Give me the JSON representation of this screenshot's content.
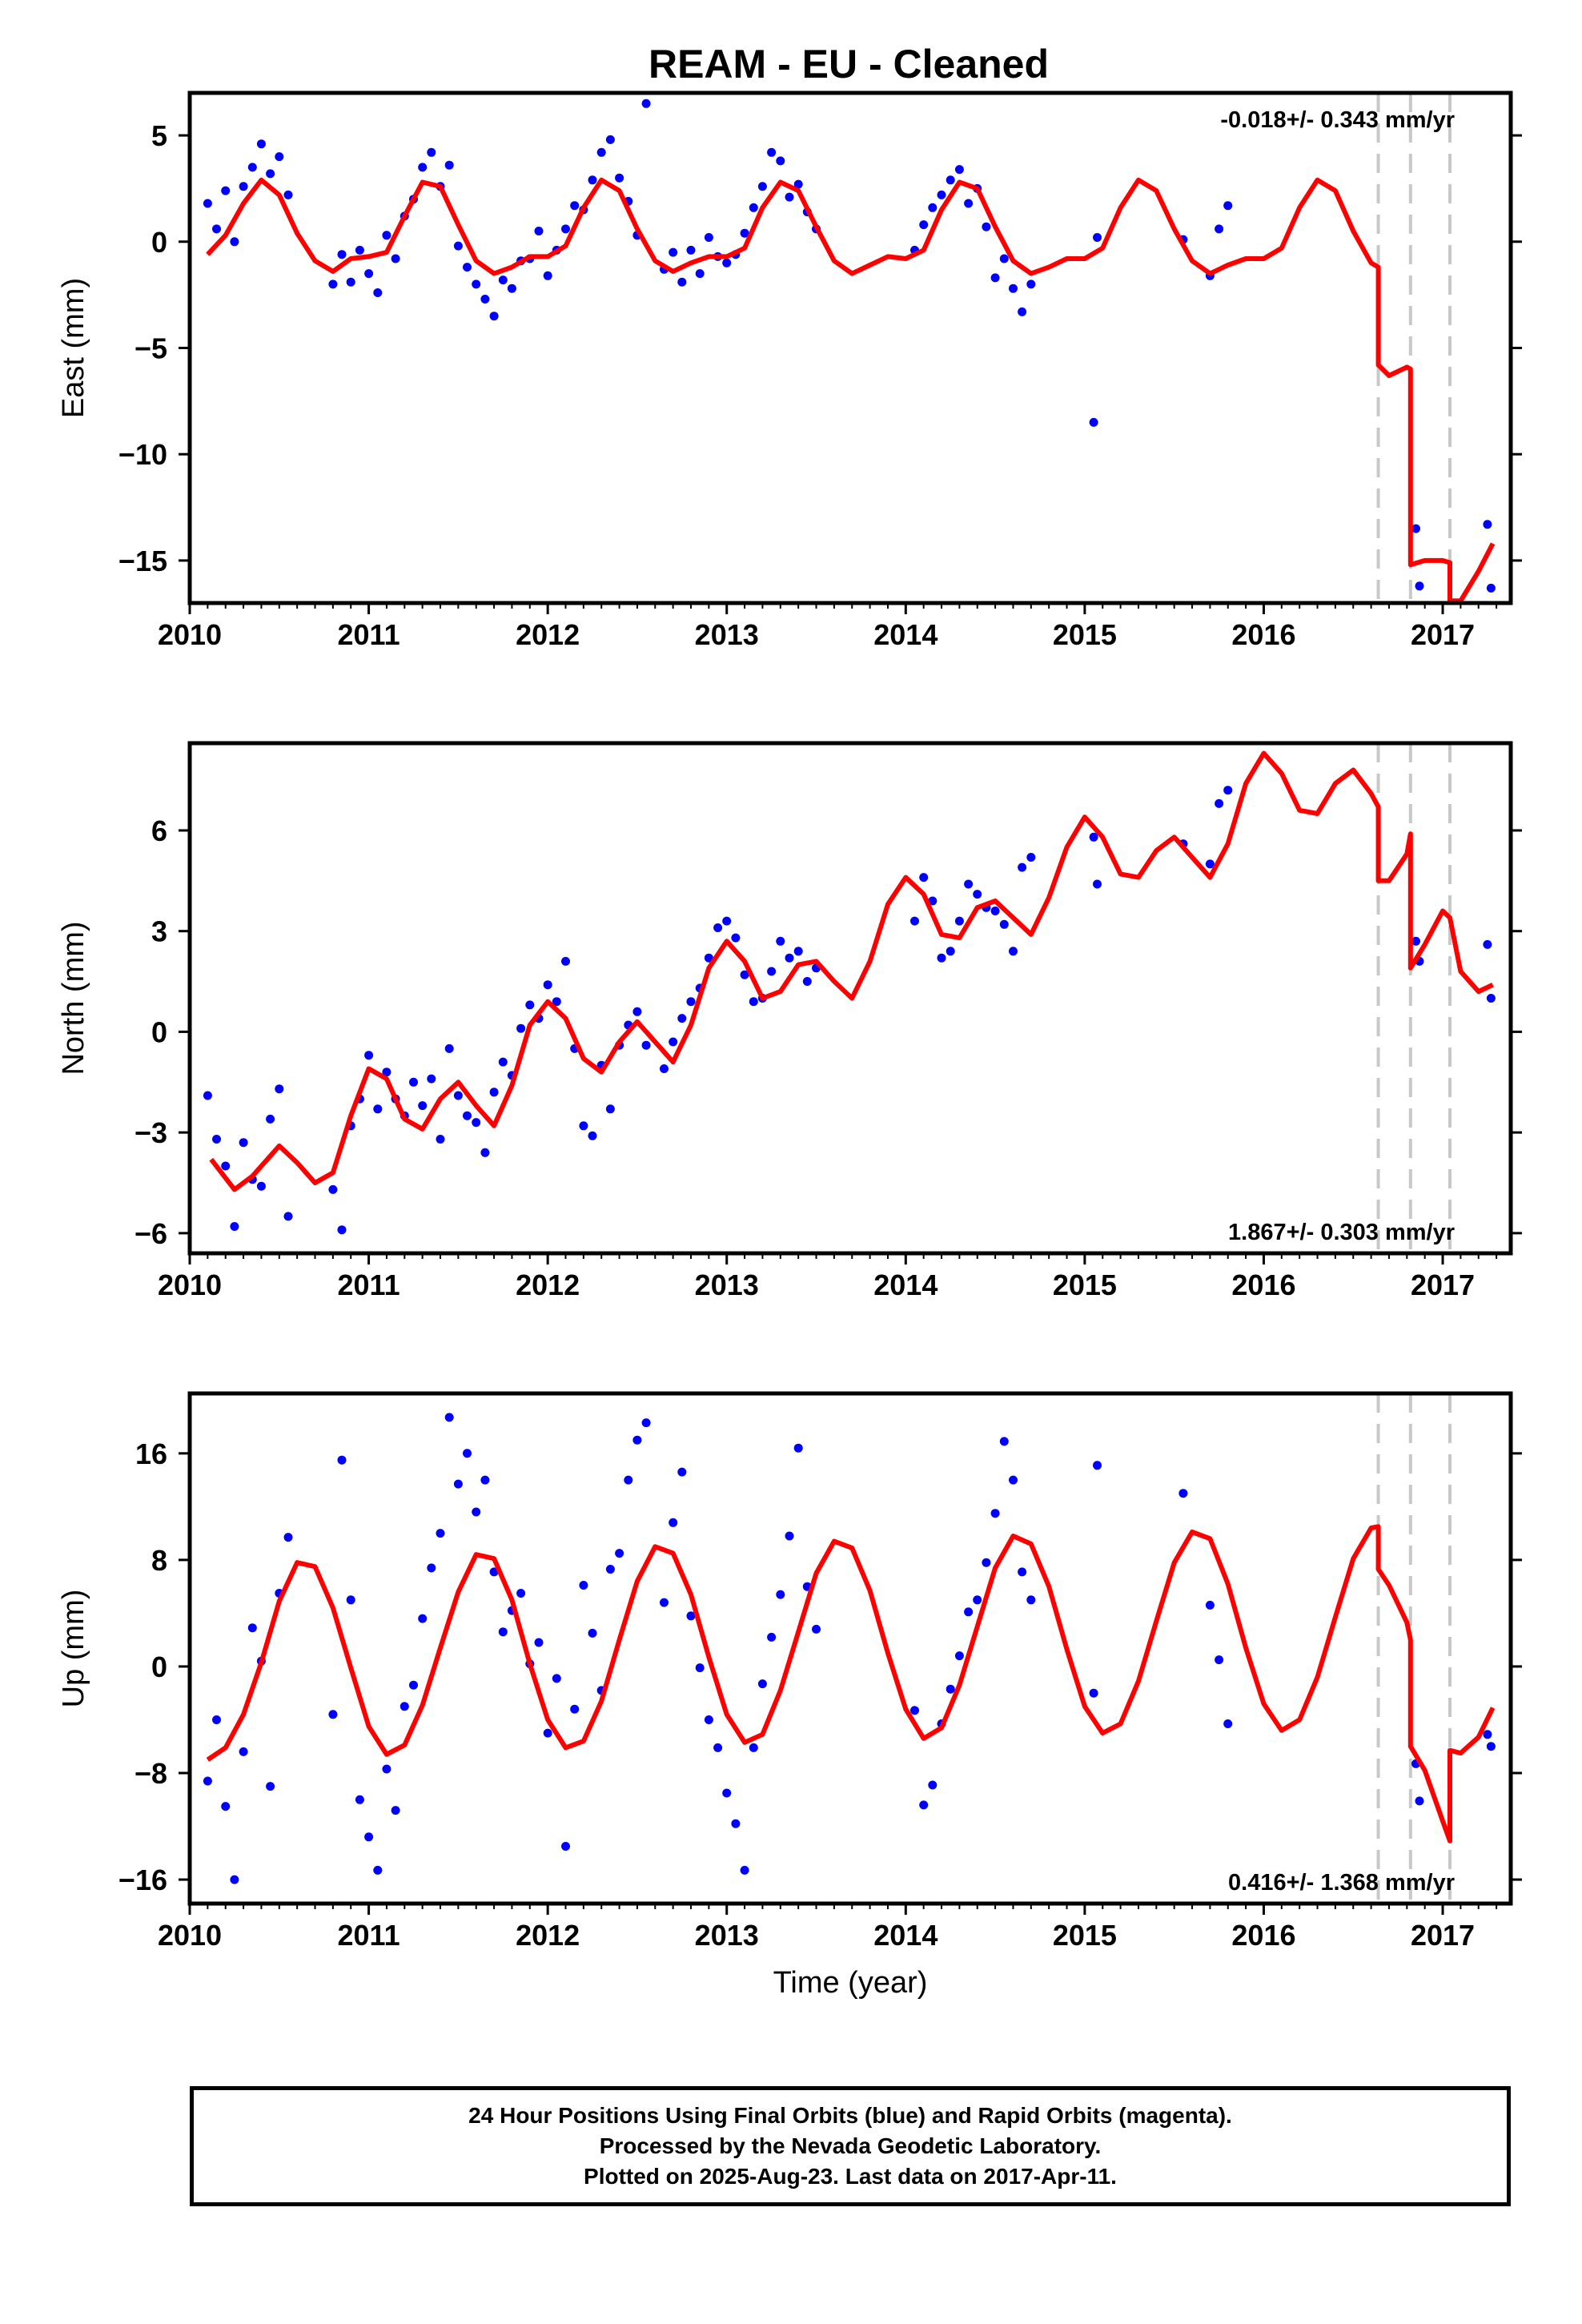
{
  "chart_data": [
    {
      "type": "scatter",
      "title": "REAM  - EU - Cleaned",
      "ylabel": "East (mm)",
      "xlim": [
        2010.0,
        2017.38
      ],
      "ylim": [
        -17.0,
        7.0
      ],
      "xticks": [
        2010,
        2011,
        2012,
        2013,
        2014,
        2015,
        2016,
        2017
      ],
      "yticks": [
        5,
        0,
        -5,
        -10,
        -15
      ],
      "ytick_labels": [
        "5",
        "0",
        "−5",
        "−10",
        "−15"
      ],
      "rate_text": "-0.018+/- 0.343 mm/yr",
      "rate_position": "top-right",
      "break_lines_x": [
        2016.64,
        2016.82,
        2017.04
      ],
      "model": {
        "color": "#ff0000",
        "x": [
          2010.1,
          2010.2,
          2010.3,
          2010.4,
          2010.5,
          2010.6,
          2010.7,
          2010.8,
          2010.9,
          2011.0,
          2011.1,
          2011.2,
          2011.3,
          2011.4,
          2011.5,
          2011.6,
          2011.7,
          2011.8,
          2011.9,
          2012.0,
          2012.1,
          2012.2,
          2012.3,
          2012.4,
          2012.5,
          2012.6,
          2012.7,
          2012.8,
          2012.9,
          2013.0,
          2013.1,
          2013.2,
          2013.3,
          2013.4,
          2013.5,
          2013.6,
          2013.7,
          2013.8,
          2013.9,
          2014.0,
          2014.1,
          2014.2,
          2014.3,
          2014.4,
          2014.5,
          2014.6,
          2014.7,
          2014.8,
          2014.9,
          2015.0,
          2015.1,
          2015.2,
          2015.3,
          2015.4,
          2015.5,
          2015.6,
          2015.7,
          2015.8,
          2015.9,
          2016.0,
          2016.1,
          2016.2,
          2016.3,
          2016.4,
          2016.5,
          2016.6,
          2016.64,
          2016.64,
          2016.7,
          2016.8,
          2016.82,
          2016.82,
          2016.9,
          2017.0,
          2017.04,
          2017.04,
          2017.1,
          2017.2,
          2017.28
        ],
        "y": [
          -0.6,
          0.3,
          1.8,
          2.9,
          2.2,
          0.4,
          -0.9,
          -1.4,
          -0.8,
          -0.7,
          -0.5,
          1.2,
          2.8,
          2.6,
          0.8,
          -0.9,
          -1.5,
          -1.2,
          -0.7,
          -0.7,
          -0.2,
          1.6,
          2.9,
          2.4,
          0.6,
          -0.9,
          -1.4,
          -1.0,
          -0.7,
          -0.7,
          -0.3,
          1.6,
          2.8,
          2.4,
          0.7,
          -0.9,
          -1.5,
          -1.1,
          -0.7,
          -0.8,
          -0.4,
          1.5,
          2.8,
          2.5,
          0.7,
          -0.9,
          -1.5,
          -1.2,
          -0.8,
          -0.8,
          -0.3,
          1.6,
          2.9,
          2.4,
          0.6,
          -0.9,
          -1.5,
          -1.1,
          -0.8,
          -0.8,
          -0.3,
          1.6,
          2.9,
          2.4,
          0.5,
          -1.0,
          -1.2,
          -5.8,
          -6.3,
          -5.9,
          -6.0,
          -15.2,
          -15.0,
          -15.0,
          -15.1,
          -16.9,
          -16.9,
          -15.5,
          -14.2
        ]
      },
      "points": {
        "color": "#0000ff",
        "x": [
          2010.1,
          2010.15,
          2010.2,
          2010.25,
          2010.3,
          2010.35,
          2010.4,
          2010.45,
          2010.5,
          2010.55,
          2010.8,
          2010.85,
          2010.9,
          2010.95,
          2011.0,
          2011.05,
          2011.1,
          2011.15,
          2011.2,
          2011.25,
          2011.3,
          2011.35,
          2011.4,
          2011.45,
          2011.5,
          2011.55,
          2011.6,
          2011.65,
          2011.7,
          2011.75,
          2011.8,
          2011.85,
          2011.9,
          2011.95,
          2012.0,
          2012.05,
          2012.1,
          2012.15,
          2012.2,
          2012.25,
          2012.3,
          2012.35,
          2012.4,
          2012.45,
          2012.5,
          2012.55,
          2012.65,
          2012.7,
          2012.75,
          2012.8,
          2012.85,
          2012.9,
          2012.95,
          2013.0,
          2013.05,
          2013.1,
          2013.15,
          2013.2,
          2013.25,
          2013.3,
          2013.35,
          2013.4,
          2013.45,
          2013.5,
          2014.05,
          2014.1,
          2014.15,
          2014.2,
          2014.25,
          2014.3,
          2014.35,
          2014.4,
          2014.45,
          2014.5,
          2014.55,
          2014.6,
          2014.65,
          2014.7,
          2015.05,
          2015.07,
          2015.55,
          2015.7,
          2015.75,
          2015.8,
          2016.85,
          2016.87,
          2017.25,
          2017.27
        ],
        "y": [
          1.8,
          0.6,
          2.4,
          0.0,
          2.6,
          3.5,
          4.6,
          3.2,
          4.0,
          2.2,
          -2.0,
          -0.6,
          -1.9,
          -0.4,
          -1.5,
          -2.4,
          0.3,
          -0.8,
          1.2,
          2.0,
          3.5,
          4.2,
          2.6,
          3.6,
          -0.2,
          -1.2,
          -2.0,
          -2.7,
          -3.5,
          -1.8,
          -2.2,
          -0.9,
          -0.8,
          0.5,
          -1.6,
          -0.4,
          0.6,
          1.7,
          1.5,
          2.9,
          4.2,
          4.8,
          3.0,
          1.9,
          0.3,
          6.5,
          -1.3,
          -0.5,
          -1.9,
          -0.4,
          -1.5,
          0.2,
          -0.7,
          -1.0,
          -0.6,
          0.4,
          1.6,
          2.6,
          4.2,
          3.8,
          2.1,
          2.7,
          1.4,
          0.6,
          -0.4,
          0.8,
          1.6,
          2.2,
          2.9,
          3.4,
          1.8,
          2.5,
          0.7,
          -1.7,
          -0.8,
          -2.2,
          -3.3,
          -2.0,
          -8.5,
          0.2,
          0.1,
          -1.6,
          0.6,
          1.7,
          -13.5,
          -16.2,
          -13.3,
          -16.3
        ]
      }
    },
    {
      "type": "scatter",
      "ylabel": "North (mm)",
      "xlim": [
        2010.0,
        2017.38
      ],
      "ylim": [
        -6.6,
        8.6
      ],
      "xticks": [
        2010,
        2011,
        2012,
        2013,
        2014,
        2015,
        2016,
        2017
      ],
      "yticks": [
        6,
        3,
        0,
        -3,
        -6
      ],
      "ytick_labels": [
        "6",
        "3",
        "0",
        "−3",
        "−6"
      ],
      "rate_text": "1.867+/- 0.303 mm/yr",
      "rate_position": "bottom-right",
      "break_lines_x": [
        2016.64,
        2016.82,
        2017.04
      ],
      "model": {
        "color": "#ff0000",
        "x": [
          2010.12,
          2010.25,
          2010.35,
          2010.5,
          2010.6,
          2010.7,
          2010.8,
          2010.9,
          2011.0,
          2011.1,
          2011.2,
          2011.3,
          2011.4,
          2011.5,
          2011.6,
          2011.7,
          2011.8,
          2011.9,
          2012.0,
          2012.1,
          2012.2,
          2012.3,
          2012.4,
          2012.5,
          2012.6,
          2012.7,
          2012.8,
          2012.9,
          2013.0,
          2013.1,
          2013.2,
          2013.3,
          2013.4,
          2013.5,
          2013.6,
          2013.7,
          2013.8,
          2013.9,
          2014.0,
          2014.1,
          2014.2,
          2014.3,
          2014.4,
          2014.5,
          2014.6,
          2014.7,
          2014.8,
          2014.9,
          2015.0,
          2015.1,
          2015.2,
          2015.3,
          2015.4,
          2015.5,
          2015.6,
          2015.7,
          2015.8,
          2015.9,
          2016.0,
          2016.1,
          2016.2,
          2016.3,
          2016.4,
          2016.5,
          2016.6,
          2016.64,
          2016.64,
          2016.7,
          2016.8,
          2016.82,
          2016.82,
          2016.9,
          2017.0,
          2017.04,
          2017.1,
          2017.2,
          2017.28
        ],
        "y": [
          -3.8,
          -4.7,
          -4.3,
          -3.4,
          -3.9,
          -4.5,
          -4.2,
          -2.5,
          -1.1,
          -1.4,
          -2.6,
          -2.9,
          -2.0,
          -1.5,
          -2.2,
          -2.8,
          -1.6,
          0.2,
          0.9,
          0.4,
          -0.8,
          -1.2,
          -0.3,
          0.3,
          -0.3,
          -0.9,
          0.2,
          1.9,
          2.7,
          2.1,
          1.0,
          1.2,
          2.0,
          2.1,
          1.5,
          1.0,
          2.1,
          3.8,
          4.6,
          4.1,
          2.9,
          2.8,
          3.7,
          3.9,
          3.4,
          2.9,
          4.0,
          5.5,
          6.4,
          5.8,
          4.7,
          4.6,
          5.4,
          5.8,
          5.2,
          4.6,
          5.6,
          7.4,
          8.3,
          7.7,
          6.6,
          6.5,
          7.4,
          7.8,
          7.1,
          6.7,
          4.5,
          4.5,
          5.3,
          5.9,
          1.9,
          2.6,
          3.6,
          3.4,
          1.8,
          1.2,
          1.4
        ]
      },
      "points": {
        "color": "#0000ff",
        "x": [
          2010.1,
          2010.15,
          2010.2,
          2010.25,
          2010.3,
          2010.35,
          2010.4,
          2010.45,
          2010.5,
          2010.55,
          2010.8,
          2010.85,
          2010.9,
          2010.95,
          2011.0,
          2011.05,
          2011.1,
          2011.15,
          2011.2,
          2011.25,
          2011.3,
          2011.35,
          2011.4,
          2011.45,
          2011.5,
          2011.55,
          2011.6,
          2011.65,
          2011.7,
          2011.75,
          2011.8,
          2011.85,
          2011.9,
          2011.95,
          2012.0,
          2012.05,
          2012.1,
          2012.15,
          2012.2,
          2012.25,
          2012.3,
          2012.35,
          2012.4,
          2012.45,
          2012.5,
          2012.55,
          2012.65,
          2012.7,
          2012.75,
          2012.8,
          2012.85,
          2012.9,
          2012.95,
          2013.0,
          2013.05,
          2013.1,
          2013.15,
          2013.2,
          2013.25,
          2013.3,
          2013.35,
          2013.4,
          2013.45,
          2013.5,
          2014.05,
          2014.1,
          2014.15,
          2014.2,
          2014.25,
          2014.3,
          2014.35,
          2014.4,
          2014.45,
          2014.5,
          2014.55,
          2014.6,
          2014.65,
          2014.7,
          2015.05,
          2015.07,
          2015.55,
          2015.7,
          2015.75,
          2015.8,
          2016.85,
          2016.87,
          2017.25,
          2017.27
        ],
        "y": [
          -1.9,
          -3.2,
          -4.0,
          -5.8,
          -3.3,
          -4.4,
          -4.6,
          -2.6,
          -1.7,
          -5.5,
          -4.7,
          -5.9,
          -2.8,
          -2.0,
          -0.7,
          -2.3,
          -1.2,
          -2.0,
          -2.5,
          -1.5,
          -2.2,
          -1.4,
          -3.2,
          -0.5,
          -1.9,
          -2.5,
          -2.7,
          -3.6,
          -1.8,
          -0.9,
          -1.3,
          0.1,
          0.8,
          0.4,
          1.4,
          0.9,
          2.1,
          -0.5,
          -2.8,
          -3.1,
          -1.0,
          -2.3,
          -0.4,
          0.2,
          0.6,
          -0.4,
          -1.1,
          -0.3,
          0.4,
          0.9,
          1.3,
          2.2,
          3.1,
          3.3,
          2.8,
          1.7,
          0.9,
          1.0,
          1.8,
          2.7,
          2.2,
          2.4,
          1.5,
          1.9,
          3.3,
          4.6,
          3.9,
          2.2,
          2.4,
          3.3,
          4.4,
          4.1,
          3.7,
          3.6,
          3.2,
          2.4,
          4.9,
          5.2,
          5.8,
          4.4,
          5.6,
          5.0,
          6.8,
          7.2,
          2.7,
          2.1,
          2.6,
          1.0
        ]
      }
    },
    {
      "type": "scatter",
      "ylabel": "Up (mm)",
      "xlabel": "Time (year)",
      "xlim": [
        2010.0,
        2017.38
      ],
      "ylim": [
        -17.8,
        20.5
      ],
      "xticks": [
        2010,
        2011,
        2012,
        2013,
        2014,
        2015,
        2016,
        2017
      ],
      "yticks": [
        16,
        8,
        0,
        -8,
        -16
      ],
      "ytick_labels": [
        "16",
        "8",
        "0",
        "−8",
        "−16"
      ],
      "rate_text": "0.416+/- 1.368 mm/yr",
      "rate_position": "bottom-right",
      "break_lines_x": [
        2016.64,
        2016.82,
        2017.04
      ],
      "model": {
        "color": "#ff0000",
        "x": [
          2010.1,
          2010.2,
          2010.3,
          2010.4,
          2010.5,
          2010.6,
          2010.7,
          2010.8,
          2010.9,
          2011.0,
          2011.1,
          2011.2,
          2011.3,
          2011.4,
          2011.5,
          2011.6,
          2011.7,
          2011.8,
          2011.9,
          2012.0,
          2012.1,
          2012.2,
          2012.3,
          2012.4,
          2012.5,
          2012.6,
          2012.7,
          2012.8,
          2012.9,
          2013.0,
          2013.1,
          2013.2,
          2013.3,
          2013.4,
          2013.5,
          2013.6,
          2013.7,
          2013.8,
          2013.9,
          2014.0,
          2014.1,
          2014.2,
          2014.3,
          2014.4,
          2014.5,
          2014.6,
          2014.7,
          2014.8,
          2014.9,
          2015.0,
          2015.1,
          2015.2,
          2015.3,
          2015.4,
          2015.5,
          2015.6,
          2015.7,
          2015.8,
          2015.9,
          2016.0,
          2016.1,
          2016.2,
          2016.3,
          2016.4,
          2016.5,
          2016.6,
          2016.64,
          2016.64,
          2016.7,
          2016.8,
          2016.82,
          2016.82,
          2016.9,
          2017.0,
          2017.04,
          2017.04,
          2017.1,
          2017.2,
          2017.28
        ],
        "y": [
          -7.0,
          -6.1,
          -3.6,
          0.3,
          4.9,
          7.8,
          7.5,
          4.4,
          -0.1,
          -4.5,
          -6.6,
          -5.9,
          -2.9,
          1.4,
          5.6,
          8.4,
          8.1,
          5.0,
          0.2,
          -4.0,
          -6.1,
          -5.6,
          -2.6,
          2.0,
          6.4,
          9.0,
          8.5,
          5.4,
          0.7,
          -3.6,
          -5.7,
          -5.1,
          -1.8,
          2.6,
          7.0,
          9.4,
          8.9,
          5.7,
          1.0,
          -3.2,
          -5.4,
          -4.6,
          -1.4,
          3.0,
          7.4,
          9.8,
          9.2,
          6.0,
          1.3,
          -3.0,
          -5.0,
          -4.3,
          -1.1,
          3.4,
          7.8,
          10.1,
          9.6,
          6.2,
          1.4,
          -2.8,
          -4.8,
          -4.0,
          -0.8,
          3.7,
          8.1,
          10.4,
          10.5,
          7.3,
          6.1,
          3.3,
          2.0,
          -6.0,
          -7.8,
          -11.6,
          -13.1,
          -6.3,
          -6.5,
          -5.3,
          -3.1
        ]
      },
      "points": {
        "color": "#0000ff",
        "x": [
          2010.1,
          2010.15,
          2010.2,
          2010.25,
          2010.3,
          2010.35,
          2010.4,
          2010.45,
          2010.5,
          2010.55,
          2010.8,
          2010.85,
          2010.9,
          2010.95,
          2011.0,
          2011.05,
          2011.1,
          2011.15,
          2011.2,
          2011.25,
          2011.3,
          2011.35,
          2011.4,
          2011.45,
          2011.5,
          2011.55,
          2011.6,
          2011.65,
          2011.7,
          2011.75,
          2011.8,
          2011.85,
          2011.9,
          2011.95,
          2012.0,
          2012.05,
          2012.1,
          2012.15,
          2012.2,
          2012.25,
          2012.3,
          2012.35,
          2012.4,
          2012.45,
          2012.5,
          2012.55,
          2012.65,
          2012.7,
          2012.75,
          2012.8,
          2012.85,
          2012.9,
          2012.95,
          2013.0,
          2013.05,
          2013.1,
          2013.15,
          2013.2,
          2013.25,
          2013.3,
          2013.35,
          2013.4,
          2013.45,
          2013.5,
          2014.05,
          2014.1,
          2014.15,
          2014.2,
          2014.25,
          2014.3,
          2014.35,
          2014.4,
          2014.45,
          2014.5,
          2014.55,
          2014.6,
          2014.65,
          2014.7,
          2015.05,
          2015.07,
          2015.55,
          2015.7,
          2015.75,
          2015.8,
          2016.85,
          2016.87,
          2017.25,
          2017.27
        ],
        "y": [
          -8.6,
          -4.0,
          -10.5,
          -16.0,
          -6.4,
          2.9,
          0.4,
          -9.0,
          5.5,
          9.7,
          -3.6,
          15.5,
          5.0,
          -10.0,
          -12.8,
          -15.3,
          -7.7,
          -10.8,
          -3.0,
          -1.4,
          3.6,
          7.4,
          10.0,
          18.7,
          13.7,
          16.0,
          11.6,
          14.0,
          7.1,
          2.6,
          4.2,
          5.5,
          0.2,
          1.8,
          -5.0,
          -0.9,
          -13.5,
          -3.2,
          6.1,
          2.5,
          -1.8,
          7.3,
          8.5,
          14.0,
          17.0,
          18.3,
          4.8,
          10.8,
          14.6,
          3.8,
          -0.1,
          -4.0,
          -6.1,
          -9.5,
          -11.8,
          -15.3,
          -6.1,
          -1.3,
          2.2,
          5.4,
          9.8,
          16.4,
          6.0,
          2.8,
          -3.3,
          -10.4,
          -8.9,
          -4.3,
          -1.7,
          0.8,
          4.1,
          5.0,
          7.8,
          11.5,
          16.9,
          14.0,
          7.1,
          5.0,
          -2.0,
          15.1,
          13.0,
          4.6,
          0.5,
          -4.3,
          -7.3,
          -10.1,
          -5.1,
          -6.0
        ]
      }
    }
  ],
  "footer": {
    "line1": "24 Hour Positions Using Final Orbits (blue) and Rapid Orbits (magenta).",
    "line2": "Processed by the Nevada Geodetic Laboratory.",
    "line3": "Plotted on 2025-Aug-23. Last data on 2017-Apr-11."
  }
}
